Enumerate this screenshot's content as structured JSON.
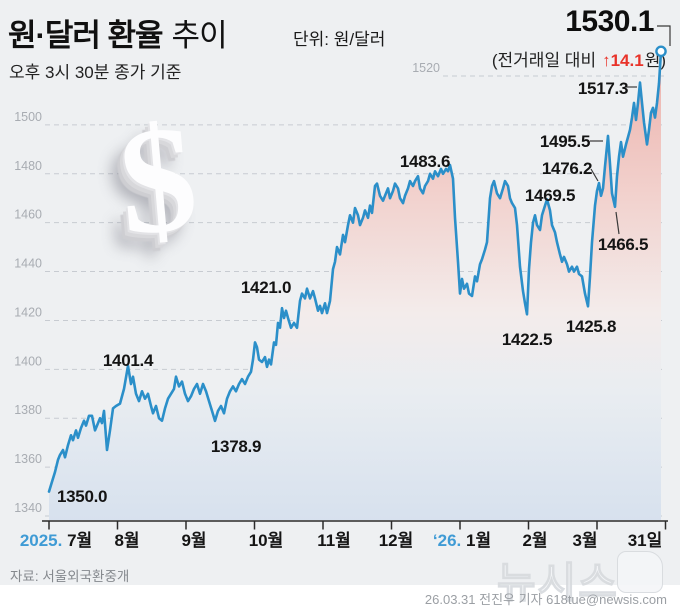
{
  "header": {
    "title_main": "원·달러 환율",
    "title_sub": "추이",
    "unit_label": "단위:  원/달러",
    "subtitle": "오후 3시 30분 종가 기준",
    "current_value": "1530.1",
    "delta_prefix": "(전거래일 대비",
    "delta_change": "↑14.1",
    "delta_suffix": "원)"
  },
  "chart_data": {
    "type": "line",
    "title": "원·달러 환율 추이",
    "unit": "원/달러",
    "legend": "none",
    "grid": "dashed-horizontal",
    "y_axis": {
      "min": 1340,
      "max": 1520,
      "step": 20,
      "tick_labels": [
        "1340",
        "1360",
        "1380",
        "1400",
        "1420",
        "1440",
        "1460",
        "1480",
        "1500",
        "1520"
      ]
    },
    "x_axis": {
      "ticks": [
        {
          "year": "2025.",
          "label": "7월"
        },
        {
          "label": "8월"
        },
        {
          "label": "9월"
        },
        {
          "label": "10월"
        },
        {
          "label": "11월"
        },
        {
          "label": "12월"
        },
        {
          "year": "‘26.",
          "label": "1월"
        },
        {
          "label": "2월"
        },
        {
          "label": "3월"
        },
        {
          "label": "31일"
        }
      ]
    },
    "latest": {
      "value": 1530.1,
      "change": 14.1,
      "direction": "up"
    },
    "annotations": [
      {
        "text": "1350.0"
      },
      {
        "text": "1401.4"
      },
      {
        "text": "1378.9"
      },
      {
        "text": "1421.0"
      },
      {
        "text": "1483.6"
      },
      {
        "text": "1422.5"
      },
      {
        "text": "1425.8"
      },
      {
        "text": "1469.5"
      },
      {
        "text": "1476.2"
      },
      {
        "text": "1495.5"
      },
      {
        "text": "1466.5"
      },
      {
        "text": "1517.3"
      }
    ],
    "colors": {
      "line": "#2b8fc9",
      "year_label": "#3f9bd5",
      "up_red": "#e8332a",
      "area_top": "#ecb2ac",
      "area_mid": "#f3eceb",
      "area_bottom": "#d7e1ee"
    },
    "series": [
      {
        "name": "원·달러 환율",
        "points": [
          [
            0,
            1350
          ],
          [
            3,
            1354
          ],
          [
            6,
            1358
          ],
          [
            9,
            1363
          ],
          [
            11,
            1365
          ],
          [
            14,
            1367
          ],
          [
            16,
            1364
          ],
          [
            19,
            1369
          ],
          [
            22,
            1373
          ],
          [
            24,
            1371
          ],
          [
            27,
            1375
          ],
          [
            29,
            1372
          ],
          [
            32,
            1376
          ],
          [
            35,
            1379
          ],
          [
            37,
            1377
          ],
          [
            40,
            1381
          ],
          [
            43,
            1381
          ],
          [
            46,
            1375
          ],
          [
            48,
            1377
          ],
          [
            51,
            1380
          ],
          [
            53,
            1378
          ],
          [
            55,
            1383
          ],
          [
            58,
            1367
          ],
          [
            61,
            1375
          ],
          [
            64,
            1384
          ],
          [
            67,
            1385
          ],
          [
            71,
            1386
          ],
          [
            75,
            1392
          ],
          [
            79,
            1401.4
          ],
          [
            82,
            1394
          ],
          [
            84,
            1397
          ],
          [
            87,
            1390
          ],
          [
            90,
            1387
          ],
          [
            93,
            1391
          ],
          [
            96,
            1388
          ],
          [
            99,
            1390
          ],
          [
            102,
            1385
          ],
          [
            104,
            1382
          ],
          [
            107,
            1385
          ],
          [
            110,
            1380
          ],
          [
            113,
            1379
          ],
          [
            116,
            1384
          ],
          [
            119,
            1388
          ],
          [
            122,
            1390
          ],
          [
            125,
            1392
          ],
          [
            127,
            1397
          ],
          [
            130,
            1393
          ],
          [
            133,
            1395
          ],
          [
            136,
            1390
          ],
          [
            139,
            1387
          ],
          [
            142,
            1389
          ],
          [
            145,
            1392
          ],
          [
            148,
            1394
          ],
          [
            151,
            1390
          ],
          [
            154,
            1394
          ],
          [
            157,
            1391
          ],
          [
            160,
            1387
          ],
          [
            163,
            1383
          ],
          [
            166,
            1378.9
          ],
          [
            169,
            1383
          ],
          [
            172,
            1385
          ],
          [
            175,
            1382
          ],
          [
            178,
            1388
          ],
          [
            181,
            1391
          ],
          [
            184,
            1393
          ],
          [
            187,
            1391
          ],
          [
            190,
            1394
          ],
          [
            193,
            1396
          ],
          [
            196,
            1394
          ],
          [
            199,
            1397
          ],
          [
            202,
            1399
          ],
          [
            204,
            1404
          ],
          [
            206,
            1411
          ],
          [
            208,
            1409
          ],
          [
            210,
            1404
          ],
          [
            213,
            1403
          ],
          [
            216,
            1405
          ],
          [
            218,
            1401
          ],
          [
            220,
            1404
          ],
          [
            222,
            1402
          ],
          [
            225,
            1411
          ],
          [
            227,
            1410
          ],
          [
            229,
            1419
          ],
          [
            231,
            1417
          ],
          [
            233,
            1425
          ],
          [
            235,
            1421
          ],
          [
            237,
            1424
          ],
          [
            239,
            1421
          ],
          [
            242,
            1417
          ],
          [
            245,
            1419
          ],
          [
            248,
            1417
          ],
          [
            251,
            1428
          ],
          [
            253,
            1431
          ],
          [
            256,
            1429
          ],
          [
            258,
            1433
          ],
          [
            261,
            1429
          ],
          [
            264,
            1432
          ],
          [
            266,
            1429
          ],
          [
            269,
            1424
          ],
          [
            271,
            1426
          ],
          [
            273,
            1423
          ],
          [
            276,
            1427
          ],
          [
            278,
            1423
          ],
          [
            281,
            1428
          ],
          [
            284,
            1441
          ],
          [
            286,
            1444
          ],
          [
            288,
            1450
          ],
          [
            291,
            1447
          ],
          [
            294,
            1455
          ],
          [
            296,
            1452
          ],
          [
            299,
            1459
          ],
          [
            301,
            1463
          ],
          [
            304,
            1460
          ],
          [
            306,
            1466
          ],
          [
            309,
            1463
          ],
          [
            311,
            1459
          ],
          [
            314,
            1462
          ],
          [
            316,
            1465
          ],
          [
            319,
            1462
          ],
          [
            321,
            1467
          ],
          [
            323,
            1464
          ],
          [
            326,
            1475
          ],
          [
            328,
            1476
          ],
          [
            331,
            1471
          ],
          [
            334,
            1469
          ],
          [
            336,
            1471
          ],
          [
            339,
            1474
          ],
          [
            341,
            1470
          ],
          [
            344,
            1473
          ],
          [
            346,
            1476
          ],
          [
            349,
            1474
          ],
          [
            351,
            1470
          ],
          [
            354,
            1468
          ],
          [
            356,
            1471
          ],
          [
            359,
            1474
          ],
          [
            361,
            1477
          ],
          [
            364,
            1475
          ],
          [
            366,
            1477
          ],
          [
            369,
            1479
          ],
          [
            371,
            1474
          ],
          [
            374,
            1472
          ],
          [
            376,
            1475
          ],
          [
            379,
            1477
          ],
          [
            381,
            1480
          ],
          [
            384,
            1478
          ],
          [
            386,
            1481
          ],
          [
            389,
            1479
          ],
          [
            392,
            1482
          ],
          [
            394,
            1480
          ],
          [
            397,
            1482
          ],
          [
            399,
            1481
          ],
          [
            401,
            1483.6
          ],
          [
            404,
            1478
          ],
          [
            406,
            1462
          ],
          [
            409,
            1444
          ],
          [
            411,
            1431
          ],
          [
            413,
            1437
          ],
          [
            415,
            1433
          ],
          [
            418,
            1435
          ],
          [
            420,
            1431
          ],
          [
            423,
            1430
          ],
          [
            426,
            1438
          ],
          [
            428,
            1436
          ],
          [
            431,
            1443
          ],
          [
            433,
            1445
          ],
          [
            436,
            1449
          ],
          [
            438,
            1452
          ],
          [
            441,
            1470
          ],
          [
            443,
            1475
          ],
          [
            445,
            1477
          ],
          [
            448,
            1472
          ],
          [
            451,
            1470
          ],
          [
            454,
            1474
          ],
          [
            456,
            1477
          ],
          [
            459,
            1475
          ],
          [
            461,
            1470
          ],
          [
            463,
            1468
          ],
          [
            466,
            1466
          ],
          [
            468,
            1459
          ],
          [
            471,
            1442
          ],
          [
            474,
            1432
          ],
          [
            476,
            1427
          ],
          [
            478,
            1422.5
          ],
          [
            480,
            1441
          ],
          [
            482,
            1452
          ],
          [
            484,
            1460
          ],
          [
            486,
            1463
          ],
          [
            488,
            1459
          ],
          [
            491,
            1457
          ],
          [
            493,
            1463
          ],
          [
            496,
            1467
          ],
          [
            498,
            1469.5
          ],
          [
            501,
            1465
          ],
          [
            503,
            1459
          ],
          [
            506,
            1456
          ],
          [
            508,
            1452
          ],
          [
            511,
            1447
          ],
          [
            513,
            1444
          ],
          [
            515,
            1446
          ],
          [
            518,
            1443
          ],
          [
            520,
            1440
          ],
          [
            523,
            1442
          ],
          [
            525,
            1440
          ],
          [
            528,
            1442
          ],
          [
            530,
            1439
          ],
          [
            533,
            1438
          ],
          [
            536,
            1431
          ],
          [
            539,
            1425.8
          ],
          [
            541,
            1438
          ],
          [
            543,
            1452
          ],
          [
            546,
            1467
          ],
          [
            548,
            1473
          ],
          [
            550,
            1476.2
          ],
          [
            552,
            1471
          ],
          [
            554,
            1474
          ],
          [
            556,
            1483
          ],
          [
            559,
            1495.5
          ],
          [
            561,
            1484
          ],
          [
            563,
            1472
          ],
          [
            566,
            1466.5
          ],
          [
            568,
            1479
          ],
          [
            570,
            1487
          ],
          [
            572,
            1493
          ],
          [
            574,
            1487
          ],
          [
            577,
            1492
          ],
          [
            579,
            1495
          ],
          [
            581,
            1498
          ],
          [
            583,
            1503
          ],
          [
            585,
            1509
          ],
          [
            587,
            1502
          ],
          [
            589,
            1509
          ],
          [
            591,
            1517.3
          ],
          [
            593,
            1509
          ],
          [
            595,
            1501
          ],
          [
            598,
            1492
          ],
          [
            600,
            1498
          ],
          [
            602,
            1505
          ],
          [
            604,
            1507
          ],
          [
            606,
            1503
          ],
          [
            608,
            1509
          ],
          [
            610,
            1517
          ],
          [
            612,
            1530.1
          ]
        ]
      }
    ]
  },
  "footer": {
    "source": "자료: 서울외국환중개",
    "watermark": "뉴시스",
    "credit": "26.03.31 전진우 기자 618tue@newsis.com"
  }
}
